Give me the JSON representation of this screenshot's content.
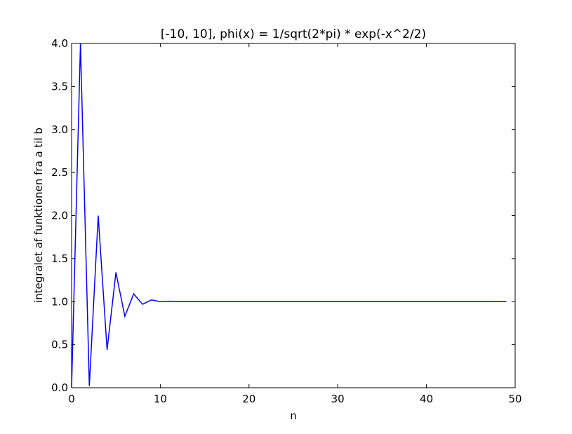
{
  "chart_data": {
    "type": "line",
    "title": "[-10, 10], phi(x) = 1/sqrt(2*pi) * exp(-x^2/2)",
    "xlabel": "n",
    "ylabel": "integralet af funktionen fra a til b",
    "xlim": [
      0,
      50
    ],
    "ylim": [
      0.0,
      4.0
    ],
    "xticks": [
      "0",
      "10",
      "20",
      "30",
      "40",
      "50"
    ],
    "yticks": [
      "0.0",
      "0.5",
      "1.0",
      "1.5",
      "2.0",
      "2.5",
      "3.0",
      "3.5",
      "4.0"
    ],
    "grid": false,
    "legend": "none",
    "series": [
      {
        "color": "#0000ff",
        "x": [
          0,
          1,
          2,
          3,
          4,
          5,
          6,
          7,
          8,
          9,
          10,
          11,
          12,
          13,
          14,
          15,
          16,
          17,
          18,
          19,
          20,
          21,
          22,
          23,
          24,
          25,
          26,
          27,
          28,
          29,
          30,
          31,
          32,
          33,
          34,
          35,
          36,
          37,
          38,
          39,
          40,
          41,
          42,
          43,
          44,
          45,
          46,
          47,
          48,
          49
        ],
        "y": [
          0.0,
          4.0,
          0.02,
          2.0,
          0.44,
          1.34,
          0.83,
          1.09,
          0.97,
          1.02,
          1.0,
          1.005,
          1.0,
          1.0,
          1.0,
          1.0,
          1.0,
          1.0,
          1.0,
          1.0,
          1.0,
          1.0,
          1.0,
          1.0,
          1.0,
          1.0,
          1.0,
          1.0,
          1.0,
          1.0,
          1.0,
          1.0,
          1.0,
          1.0,
          1.0,
          1.0,
          1.0,
          1.0,
          1.0,
          1.0,
          1.0,
          1.0,
          1.0,
          1.0,
          1.0,
          1.0,
          1.0,
          1.0,
          1.0,
          1.0
        ]
      }
    ]
  }
}
